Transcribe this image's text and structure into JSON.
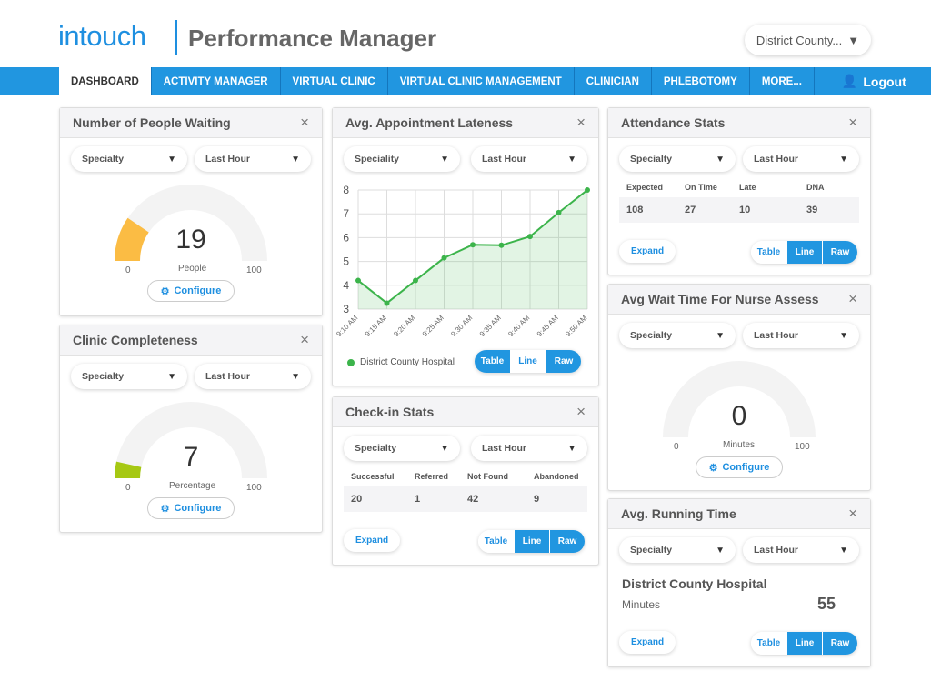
{
  "header": {
    "logo": "intouch",
    "title": "Performance Manager",
    "district": "District County..."
  },
  "nav": {
    "tabs": [
      "DASHBOARD",
      "ACTIVITY MANAGER",
      "VIRTUAL CLINIC",
      "VIRTUAL CLINIC MANAGEMENT",
      "CLINICIAN",
      "PHLEBOTOMY",
      "MORE..."
    ],
    "active": "DASHBOARD",
    "logout": "Logout"
  },
  "colors": {
    "brand": "#2196e0",
    "gauge_orange": "#fbbc44",
    "gauge_green": "#a6c813",
    "chart_green": "#3cb44b"
  },
  "common": {
    "specialty": "Specialty",
    "speciality": "Speciality",
    "last_hour": "Last Hour",
    "configure": "Configure",
    "expand": "Expand",
    "table": "Table",
    "line": "Line",
    "raw": "Raw",
    "close": "×"
  },
  "people_waiting": {
    "title": "Number of People Waiting",
    "value": "19",
    "unit": "People",
    "min": "0",
    "max": "100",
    "fraction": 0.19
  },
  "clinic_completeness": {
    "title": "Clinic Completeness",
    "value": "7",
    "unit": "Percentage",
    "min": "0",
    "max": "100",
    "fraction": 0.07
  },
  "lateness": {
    "title": "Avg. Appointment Lateness",
    "legend": "District County Hospital"
  },
  "checkin": {
    "title": "Check-in Stats",
    "headers": [
      "Successful",
      "Referred",
      "Not Found",
      "Abandoned"
    ],
    "values": [
      "20",
      "1",
      "42",
      "9"
    ]
  },
  "attendance": {
    "title": "Attendance Stats",
    "headers": [
      "Expected",
      "On Time",
      "Late",
      "DNA"
    ],
    "values": [
      "108",
      "27",
      "10",
      "39"
    ]
  },
  "nurse": {
    "title": "Avg Wait Time For Nurse Assess",
    "value": "0",
    "unit": "Minutes",
    "min": "0",
    "max": "100",
    "fraction": 0
  },
  "running": {
    "title": "Avg. Running Time",
    "hospital": "District County Hospital",
    "unit": "Minutes",
    "value": "55"
  },
  "chart_data": {
    "type": "line",
    "title": "Avg. Appointment Lateness",
    "x": [
      "9:10 AM",
      "9:15 AM",
      "9:20 AM",
      "9:25 AM",
      "9:30 AM",
      "9:35 AM",
      "9:40 AM",
      "9:45 AM",
      "9:50 AM"
    ],
    "series": [
      {
        "name": "District County Hospital",
        "values": [
          4.2,
          3.25,
          4.2,
          5.15,
          5.7,
          5.68,
          6.05,
          7.05,
          8.0
        ]
      }
    ],
    "ylim": [
      3,
      8
    ],
    "yticks": [
      3,
      4,
      5,
      6,
      7,
      8
    ],
    "grid": true,
    "legend": "bottom-left"
  }
}
